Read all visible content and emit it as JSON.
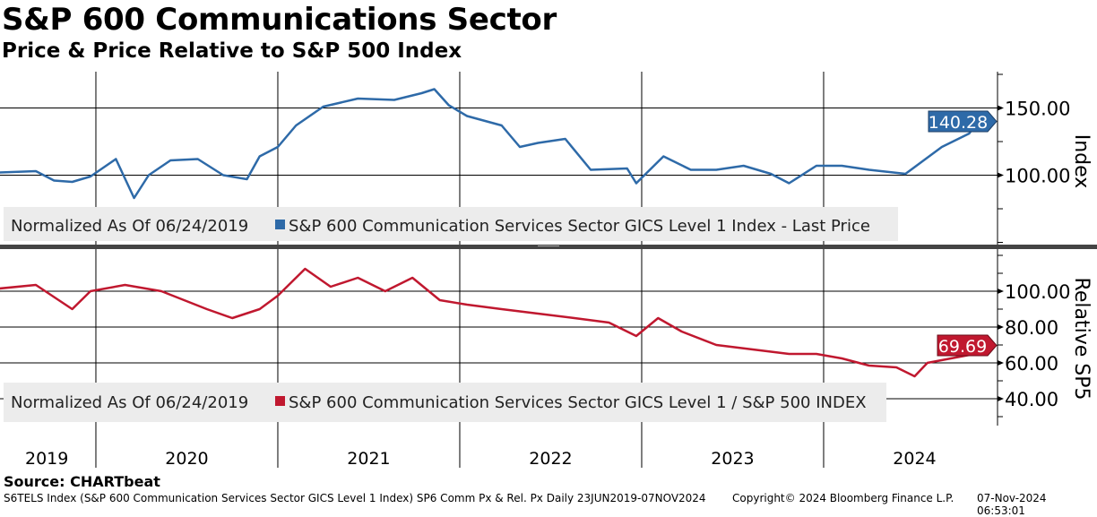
{
  "header": {
    "title": "S&P 600 Communications Sector",
    "subtitle": "Price & Price Relative to S&P 500 Index"
  },
  "footer": {
    "source": "Source: CHARTbeat",
    "ticker_info": "S6TELS Index (S&P 600 Communication Services Sector GICS Level 1 Index) SP6 Comm Px & Rel. Px  Daily 23JUN2019-07NOV2024",
    "copyright": "Copyright© 2024 Bloomberg Finance L.P.",
    "timestamp": "07-Nov-2024 06:53:01"
  },
  "colors": {
    "index": "#2e6aa8",
    "relative": "#c0182f"
  },
  "chart_data": [
    {
      "type": "line",
      "panel": "top",
      "ylabel": "Index",
      "ylim": [
        49,
        177
      ],
      "yticks": [
        100,
        150
      ],
      "ytick_labels": [
        "100.00",
        "150.00"
      ],
      "legend": "Normalized As Of 06/24/2019",
      "series_name": "S&P 600 Communication Services Sector GICS Level 1 Index - Last Price",
      "last_value_label": "140.28",
      "last_value": 140.28,
      "x": [
        2019.47,
        2019.67,
        2019.77,
        2019.87,
        2019.97,
        2020.11,
        2020.21,
        2020.29,
        2020.41,
        2020.56,
        2020.7,
        2020.83,
        2020.9,
        2021.0,
        2021.1,
        2021.25,
        2021.44,
        2021.64,
        2021.79,
        2021.86,
        2021.94,
        2022.04,
        2022.23,
        2022.33,
        2022.43,
        2022.58,
        2022.72,
        2022.92,
        2022.97,
        2023.12,
        2023.27,
        2023.41,
        2023.56,
        2023.71,
        2023.81,
        2023.96,
        2024.1,
        2024.25,
        2024.45,
        2024.55,
        2024.65,
        2024.74,
        2024.8,
        2024.85
      ],
      "y": [
        102,
        103,
        96,
        95,
        99,
        112,
        83,
        100,
        111,
        112,
        100,
        97,
        114,
        121,
        137,
        151,
        157,
        156,
        161,
        164,
        152,
        144,
        137,
        121,
        124,
        127,
        104,
        105,
        94,
        114,
        104,
        104,
        107,
        101,
        94,
        107,
        107,
        104,
        101,
        111,
        121,
        127,
        131,
        140.28
      ]
    },
    {
      "type": "line",
      "panel": "bottom",
      "ylabel": "Relative SP5",
      "ylim": [
        25,
        121.5
      ],
      "yticks": [
        40,
        60,
        80,
        100
      ],
      "ytick_labels": [
        "40.00",
        "60.00",
        "80.00",
        "100.00"
      ],
      "legend": "Normalized As Of 06/24/2019",
      "series_name": "S&P 600 Communication Services Sector GICS Level 1 / S&P 500 INDEX",
      "last_value_label": "69.69",
      "last_value": 69.69,
      "x": [
        2019.47,
        2019.67,
        2019.87,
        2019.97,
        2020.16,
        2020.36,
        2020.61,
        2020.75,
        2020.9,
        2021.0,
        2021.15,
        2021.29,
        2021.44,
        2021.59,
        2021.74,
        2021.89,
        2022.04,
        2022.23,
        2022.43,
        2022.63,
        2022.82,
        2022.97,
        2023.09,
        2023.22,
        2023.41,
        2023.61,
        2023.81,
        2023.96,
        2024.1,
        2024.25,
        2024.4,
        2024.5,
        2024.57,
        2024.7,
        2024.83,
        2024.85
      ],
      "y": [
        101.5,
        103.5,
        90,
        100,
        103.5,
        100,
        90,
        85,
        90,
        97.5,
        112.5,
        102.5,
        107.5,
        100,
        107.5,
        95,
        92.5,
        90,
        87.5,
        85,
        82.5,
        75,
        85,
        77.5,
        70,
        67.5,
        65,
        65,
        62.5,
        58.5,
        57.5,
        52.5,
        60,
        62.5,
        65,
        69.69
      ]
    }
  ],
  "x_axis": {
    "range": [
      2019.47,
      2024.95
    ],
    "year_labels": [
      "2019",
      "2020",
      "2021",
      "2022",
      "2023",
      "2024"
    ],
    "year_starts": [
      2020,
      2021,
      2022,
      2023,
      2024
    ]
  }
}
